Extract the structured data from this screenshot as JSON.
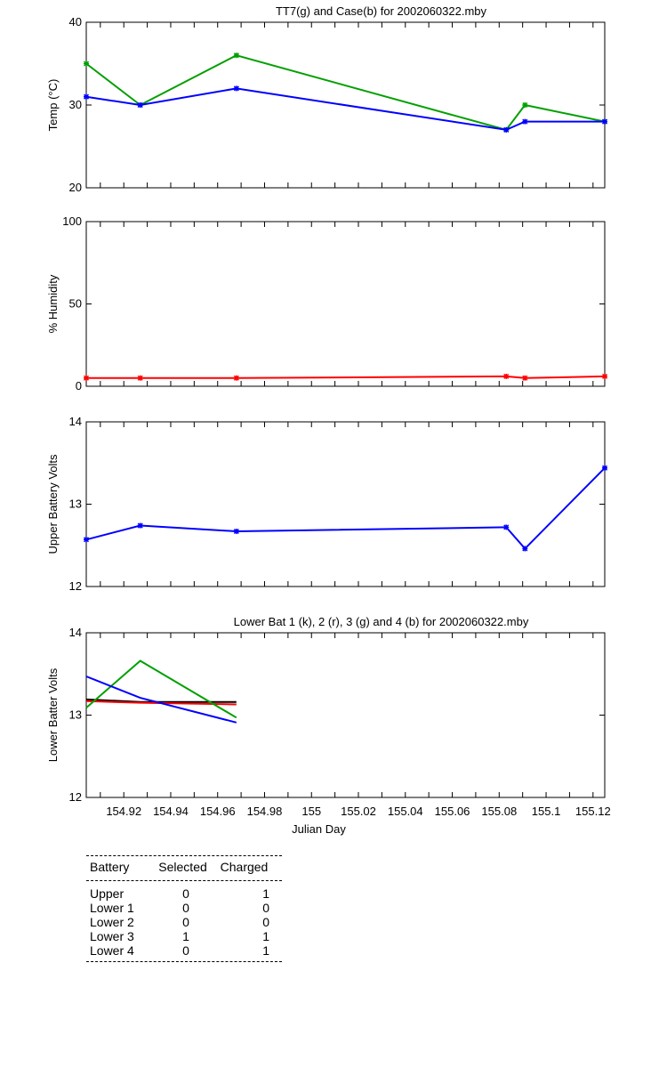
{
  "colors": {
    "green": "#00a000",
    "blue": "#0000ff",
    "red": "#ff0000",
    "black": "#000000"
  },
  "chart_data": [
    {
      "type": "line",
      "title": "TT7(g) and Case(b) for 2002060322.mby",
      "xlabel": "",
      "ylabel": "Temp  (°C)",
      "xlim": [
        154.904,
        155.125
      ],
      "ylim": [
        20,
        40
      ],
      "yticks": [
        20,
        30,
        40
      ],
      "series": [
        {
          "color": "green",
          "marker": true,
          "x": [
            154.904,
            154.927,
            154.968,
            155.083,
            155.091,
            155.125
          ],
          "y": [
            35,
            30,
            36,
            27,
            30,
            28
          ]
        },
        {
          "color": "blue",
          "marker": true,
          "x": [
            154.904,
            154.927,
            154.968,
            155.083,
            155.091,
            155.125
          ],
          "y": [
            31,
            30,
            32,
            27,
            28,
            28
          ]
        }
      ]
    },
    {
      "type": "line",
      "title": "",
      "xlabel": "",
      "ylabel": "% Humidity",
      "xlim": [
        154.904,
        155.125
      ],
      "ylim": [
        0,
        100
      ],
      "yticks": [
        0,
        50,
        100
      ],
      "series": [
        {
          "color": "red",
          "marker": true,
          "x": [
            154.904,
            154.927,
            154.968,
            155.083,
            155.091,
            155.125
          ],
          "y": [
            5,
            5,
            5,
            6,
            5,
            6
          ]
        }
      ]
    },
    {
      "type": "line",
      "title": "",
      "xlabel": "",
      "ylabel": "Upper Battery Volts",
      "xlim": [
        154.904,
        155.125
      ],
      "ylim": [
        12,
        14
      ],
      "yticks": [
        12,
        13,
        14
      ],
      "series": [
        {
          "color": "blue",
          "marker": true,
          "x": [
            154.904,
            154.927,
            154.968,
            155.083,
            155.091,
            155.125
          ],
          "y": [
            12.57,
            12.74,
            12.67,
            12.72,
            12.46,
            13.44
          ]
        }
      ]
    },
    {
      "type": "line",
      "title": "Lower Bat 1 (k), 2 (r), 3 (g) and 4 (b) for 2002060322.mby",
      "xlabel": "Julian Day",
      "ylabel": "Lower Batter Volts",
      "xlim": [
        154.904,
        155.125
      ],
      "ylim": [
        12,
        14
      ],
      "yticks": [
        12,
        13,
        14
      ],
      "xticks": [
        "154.92",
        "154.94",
        "154.96",
        "154.98",
        "155",
        "155.02",
        "155.04",
        "155.06",
        "155.08",
        "155.1",
        "155.12"
      ],
      "series": [
        {
          "color": "black",
          "marker": false,
          "x": [
            154.904,
            154.927,
            154.968
          ],
          "y": [
            13.19,
            13.16,
            13.16
          ]
        },
        {
          "color": "red",
          "marker": false,
          "x": [
            154.904,
            154.927,
            154.968
          ],
          "y": [
            13.17,
            13.15,
            13.13
          ]
        },
        {
          "color": "green",
          "marker": false,
          "x": [
            154.904,
            154.927,
            154.968
          ],
          "y": [
            13.09,
            13.66,
            12.97
          ]
        },
        {
          "color": "blue",
          "marker": false,
          "x": [
            154.904,
            154.927,
            154.968
          ],
          "y": [
            13.47,
            13.21,
            12.91
          ]
        }
      ]
    }
  ],
  "battery_table": {
    "headers": [
      "Battery",
      "Selected",
      "Charged"
    ],
    "rows": [
      {
        "battery": "Upper",
        "selected": "0",
        "charged": "1"
      },
      {
        "battery": "Lower 1",
        "selected": "0",
        "charged": "0"
      },
      {
        "battery": "Lower 2",
        "selected": "0",
        "charged": "0"
      },
      {
        "battery": "Lower 3",
        "selected": "1",
        "charged": "1"
      },
      {
        "battery": "Lower 4",
        "selected": "0",
        "charged": "1"
      }
    ]
  }
}
